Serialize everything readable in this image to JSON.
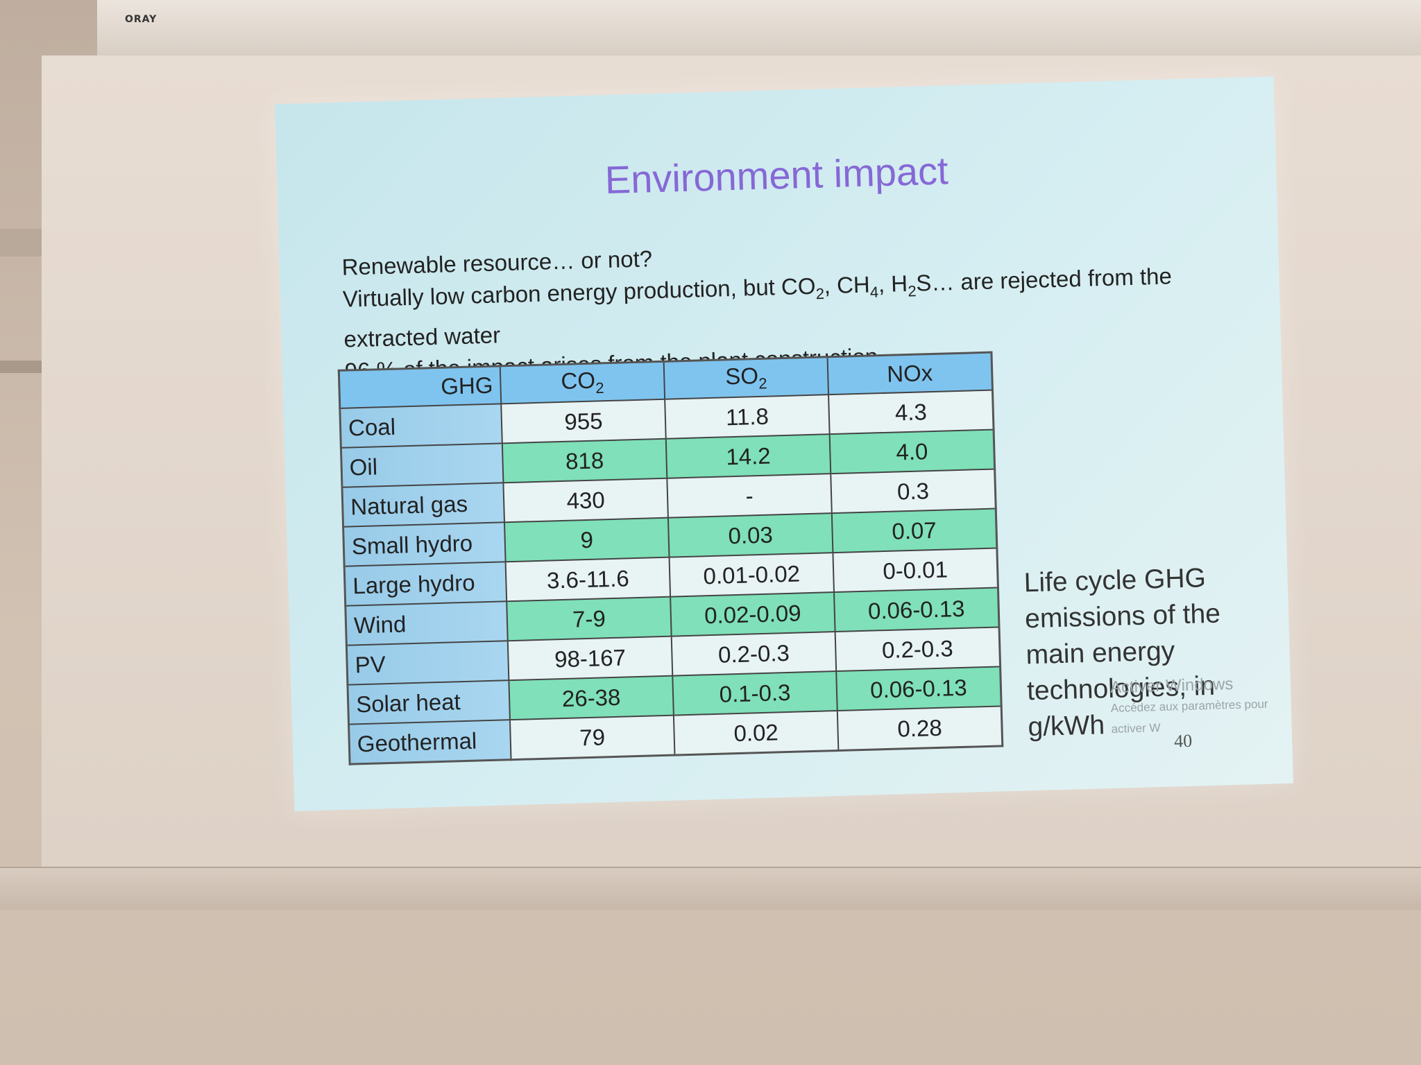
{
  "projector": {
    "brand": "ORAY"
  },
  "slide": {
    "title": "Environment impact",
    "bullets": [
      "Renewable resource… or not?",
      "Virtually low carbon energy production, but CO2, CH4, H2S… are rejected from the extracted water",
      "96 % of the impact arises from the plant construction"
    ],
    "table": {
      "header": [
        "GHG",
        "CO2",
        "SO2",
        "NOx"
      ],
      "rows": [
        {
          "label": "Coal",
          "co2": "955",
          "so2": "11.8",
          "nox": "4.3",
          "style": "w"
        },
        {
          "label": "Oil",
          "co2": "818",
          "so2": "14.2",
          "nox": "4.0",
          "style": "g"
        },
        {
          "label": "Natural gas",
          "co2": "430",
          "so2": "-",
          "nox": "0.3",
          "style": "w"
        },
        {
          "label": "Small hydro",
          "co2": "9",
          "so2": "0.03",
          "nox": "0.07",
          "style": "g"
        },
        {
          "label": "Large hydro",
          "co2": "3.6-11.6",
          "so2": "0.01-0.02",
          "nox": "0-0.01",
          "style": "w"
        },
        {
          "label": "Wind",
          "co2": "7-9",
          "so2": "0.02-0.09",
          "nox": "0.06-0.13",
          "style": "g"
        },
        {
          "label": "PV",
          "co2": "98-167",
          "so2": "0.2-0.3",
          "nox": "0.2-0.3",
          "style": "w"
        },
        {
          "label": "Solar heat",
          "co2": "26-38",
          "so2": "0.1-0.3",
          "nox": "0.06-0.13",
          "style": "g"
        },
        {
          "label": "Geothermal",
          "co2": "79",
          "so2": "0.02",
          "nox": "0.28",
          "style": "w"
        }
      ]
    },
    "side_note": "Life cycle GHG emissions of the main energy technologies, in g/kWh",
    "page_number": "40"
  },
  "watermark": {
    "line1": "Activer Windows",
    "line2": "Accédez aux paramètres pour activer W"
  },
  "colors": {
    "title": "#8668d6",
    "row_green": "#7fe0b9",
    "header_blue": "#7fc4ef"
  }
}
